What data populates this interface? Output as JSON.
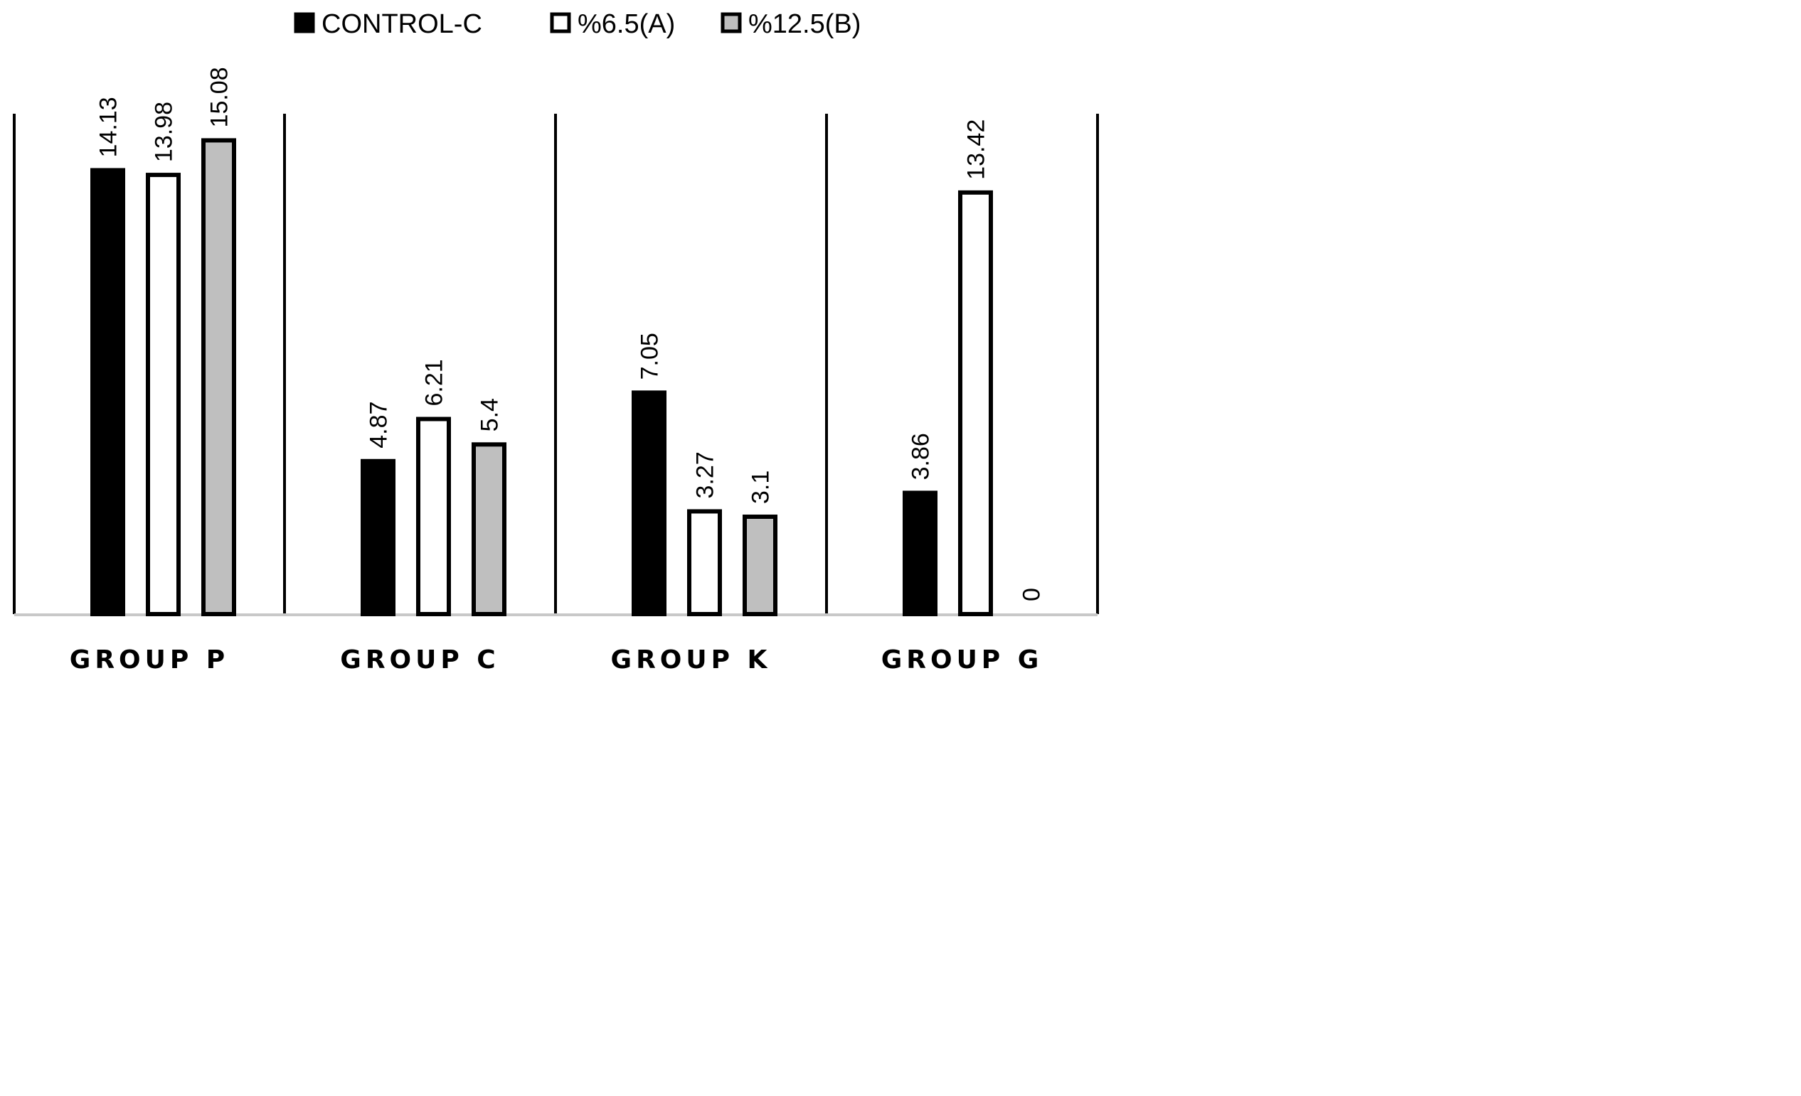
{
  "chart_data": {
    "type": "bar",
    "title": "",
    "xlabel": "",
    "ylabel": "",
    "ylim": [
      0,
      16
    ],
    "grid": false,
    "legend_position": "top-center",
    "categories": [
      "GROUP  P",
      "GROUP  C",
      "GROUP  K",
      "GROUP  G"
    ],
    "series": [
      {
        "name": "CONTROL-C",
        "fill": "#000000",
        "values": [
          14.13,
          4.87,
          7.05,
          3.86
        ],
        "labels": [
          "14.13",
          "4.87",
          "7.05",
          "3.86"
        ]
      },
      {
        "name": "%6.5(A)",
        "fill": "#ffffff",
        "values": [
          13.98,
          6.21,
          3.27,
          13.42
        ],
        "labels": [
          "13.98",
          "6.21",
          "3.27",
          "13.42"
        ]
      },
      {
        "name": "%12.5(B)",
        "fill": "#bfbfbf",
        "values": [
          15.08,
          5.4,
          3.1,
          0
        ],
        "labels": [
          "15.08",
          "5.4",
          "3.1",
          "0"
        ]
      }
    ],
    "colors": {
      "stroke": "#000000",
      "baseline": "#c8c8c8",
      "separator": "#000000"
    }
  }
}
